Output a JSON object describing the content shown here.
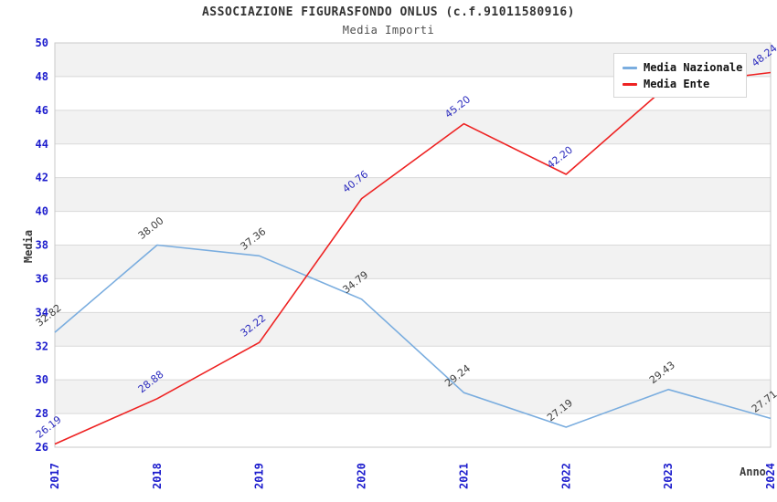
{
  "chart": {
    "title": "ASSOCIAZIONE FIGURASFONDO ONLUS (c.f.91011580916)",
    "subtitle": "Media Importi",
    "xlabel": "Anno",
    "ylabel": "Media"
  },
  "legend": {
    "items": [
      {
        "label": "Media Nazionale",
        "color": "#7aaddf"
      },
      {
        "label": "Media Ente",
        "color": "#ee2222"
      }
    ]
  },
  "chart_data": {
    "type": "line",
    "title": "ASSOCIAZIONE FIGURASFONDO ONLUS (c.f.91011580916)",
    "subtitle": "Media Importi",
    "xlabel": "Anno",
    "ylabel": "Media",
    "categories": [
      "2017",
      "2018",
      "2019",
      "2020",
      "2021",
      "2022",
      "2023",
      "2024"
    ],
    "series": [
      {
        "name": "Media Nazionale",
        "color": "#7aaddf",
        "label_color": "#3d3d3d",
        "values": [
          32.82,
          38.0,
          37.36,
          34.79,
          29.24,
          27.19,
          29.43,
          27.71
        ],
        "point_labels": [
          "32.82",
          "38.00",
          "37.36",
          "34.79",
          "29.24",
          "27.19",
          "29.43",
          "27.71"
        ]
      },
      {
        "name": "Media Ente",
        "color": "#ee2222",
        "label_color": "#2b2bbe",
        "values": [
          26.19,
          28.88,
          32.22,
          40.76,
          45.2,
          42.2,
          47.5,
          48.24
        ],
        "point_labels": [
          "26.19",
          "28.88",
          "32.22",
          "40.76",
          "45.20",
          "42.20",
          null,
          "48.24"
        ]
      }
    ],
    "ylim": [
      26,
      50
    ],
    "ytick_step": 2,
    "yticks": [
      26,
      28,
      30,
      32,
      34,
      36,
      38,
      40,
      42,
      44,
      46,
      48,
      50
    ],
    "grid": "horizontal gridlines with alternating gray/white bands",
    "legend_position": "top-right",
    "tick_color": "#1c1ccd",
    "band_color": "#f2f2f2",
    "gridline_color": "#d9d9d9",
    "border_color": "#c9c9c9"
  }
}
